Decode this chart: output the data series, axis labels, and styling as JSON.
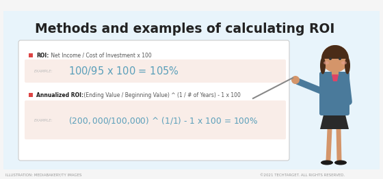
{
  "title": "Methods and examples of calculating ROI",
  "bg_outer": "#e8f4fb",
  "bg_white": "#f5f5f5",
  "bg_inner": "#ffffff",
  "bg_example": "#f9ede8",
  "border_color": "#cccccc",
  "title_color": "#222222",
  "title_fontsize": 13.5,
  "roi_label": "ROI:",
  "roi_desc": " Net Income / Cost of Investment x 100",
  "roi_example_label": "EXAMPLE:",
  "roi_example": "$100 / $95 x 100 = 105%",
  "ann_label": "Annualized ROI:",
  "ann_desc": " (Ending Value / Beginning Value) ^ (1 / # of Years) - 1 x 100",
  "ann_example_label": "EXAMPLE:",
  "ann_example": "($200,000 / $100,000) ^ (1/1) - 1 x 100 = 100%",
  "bullet_color": "#dd4444",
  "example_label_color": "#bbbbbb",
  "example_text_color": "#5a9fba",
  "label_bold_color": "#1a1a1a",
  "label_desc_color": "#555555",
  "footer_left": "ILLUSTRATION: MEDIABAKERY/TY IMAGES",
  "footer_right": "©2021 TECHTARGET. ALL RIGHTS RESERVED.",
  "footer_color": "#999999",
  "footer_fontsize": 4.0,
  "skin_color": "#d4956a",
  "hair_color": "#4a2c18",
  "jacket_color": "#4a7a9b",
  "skirt_color": "#2a2a2a",
  "shoe_color": "#1a1a1a",
  "pointer_color": "#888888"
}
